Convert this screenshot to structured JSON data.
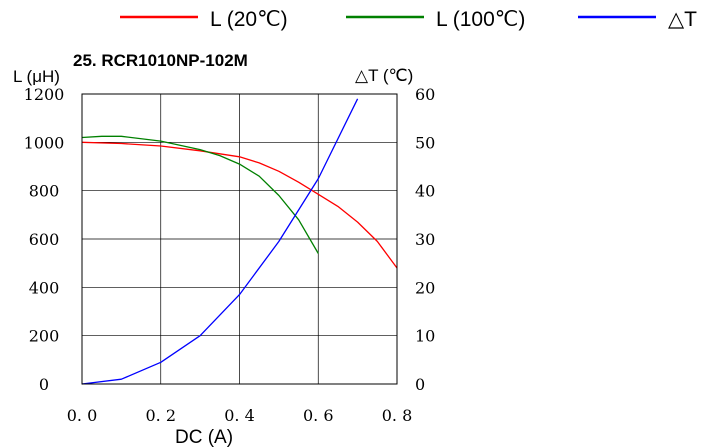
{
  "chart_data": {
    "type": "line",
    "title": "25. RCR1010NP-102M",
    "xlabel": "DC (A)",
    "ylabel_left": "L (μH)",
    "ylabel_right": "△T (℃)",
    "xlim": [
      0,
      0.8
    ],
    "ylim_left": [
      0,
      1200
    ],
    "ylim_right": [
      0,
      60
    ],
    "grid": true,
    "legend_position": "top",
    "x_ticks": [
      "0. 0",
      "0. 2",
      "0. 4",
      "0. 6",
      "0. 8"
    ],
    "y_left_ticks": [
      "0",
      "200",
      "400",
      "600",
      "800",
      "1000",
      "1200"
    ],
    "y_right_ticks": [
      "0",
      "10",
      "20",
      "30",
      "40",
      "50",
      "60"
    ],
    "series": [
      {
        "name": "L (20℃)",
        "axis": "left",
        "color": "#ff0000",
        "x": [
          0,
          0.1,
          0.2,
          0.3,
          0.4,
          0.45,
          0.5,
          0.55,
          0.6,
          0.65,
          0.7,
          0.75,
          0.8
        ],
        "y": [
          1000,
          995,
          985,
          965,
          940,
          915,
          880,
          835,
          785,
          735,
          670,
          590,
          480
        ]
      },
      {
        "name": "L (100℃)",
        "axis": "left",
        "color": "#008000",
        "x": [
          0,
          0.05,
          0.1,
          0.2,
          0.3,
          0.35,
          0.4,
          0.45,
          0.5,
          0.55,
          0.6
        ],
        "y": [
          1020,
          1025,
          1025,
          1005,
          970,
          945,
          910,
          860,
          780,
          680,
          540
        ]
      },
      {
        "name": "△T",
        "axis": "right",
        "color": "#0000ff",
        "x": [
          0,
          0.1,
          0.2,
          0.3,
          0.4,
          0.5,
          0.6,
          0.7
        ],
        "y": [
          0,
          1,
          4.5,
          10,
          18.5,
          29.5,
          42.5,
          59
        ]
      }
    ]
  }
}
